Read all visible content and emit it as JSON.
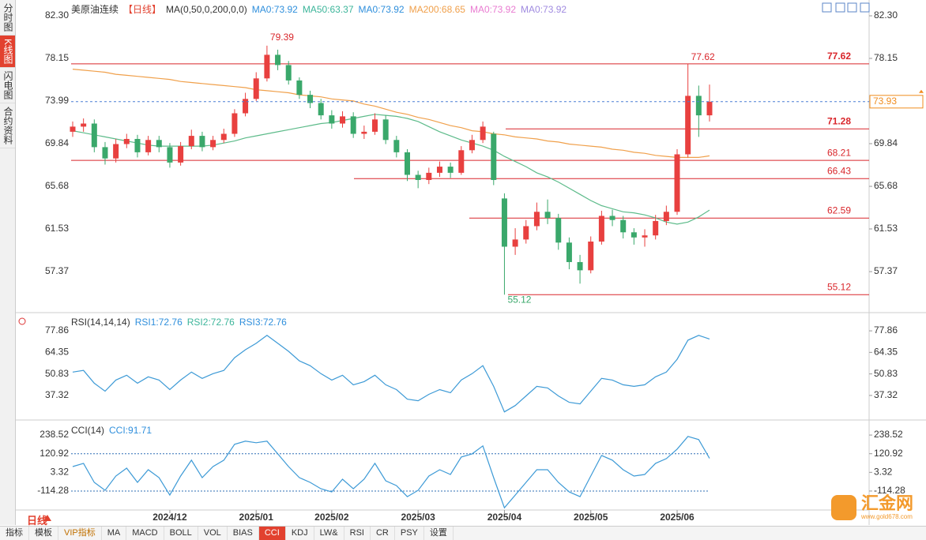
{
  "sidebar": {
    "tabs": [
      "分时图",
      "K线图",
      "闪电图",
      "合约资料"
    ],
    "active": "K线图"
  },
  "chart_data": [
    {
      "type": "candlestick",
      "title": "美原油连续",
      "period": "【日线】",
      "indicator": "MA(0,50,0,200,0,0)",
      "legend": [
        {
          "label": "MA0:73.92",
          "color": "#2f8fdc"
        },
        {
          "label": "MA50:63.37",
          "color": "#3cb59a"
        },
        {
          "label": "MA0:73.92",
          "color": "#2f8fdc"
        },
        {
          "label": "MA200:68.65",
          "color": "#f0a04b"
        },
        {
          "label": "MA0:73.92",
          "color": "#e97bd1"
        },
        {
          "label": "MA0:73.92",
          "color": "#a08be0"
        }
      ],
      "categories": [
        null,
        null,
        null,
        null,
        null,
        null,
        null,
        null,
        null,
        "2024/12",
        null,
        null,
        null,
        null,
        null,
        null,
        null,
        "2025/01",
        null,
        null,
        null,
        null,
        null,
        null,
        "2025/02",
        null,
        null,
        null,
        null,
        null,
        null,
        null,
        "2025/03",
        null,
        null,
        null,
        null,
        null,
        null,
        null,
        "2025/04",
        null,
        null,
        null,
        null,
        null,
        null,
        null,
        "2025/05",
        null,
        null,
        null,
        null,
        null,
        null,
        null,
        "2025/06",
        null,
        null,
        null
      ],
      "open": [
        71.0,
        71.5,
        71.8,
        69.5,
        68.4,
        69.8,
        70.3,
        69.0,
        70.2,
        69.5,
        68.0,
        69.6,
        70.6,
        69.5,
        70.2,
        70.8,
        72.8,
        74.2,
        76.2,
        78.5,
        77.5,
        76.0,
        74.6,
        73.8,
        72.6,
        71.8,
        72.5,
        70.8,
        71.0,
        72.2,
        70.2,
        69.0,
        66.8,
        66.3,
        67.0,
        67.6,
        67.0,
        69.2,
        70.2,
        70.8,
        64.5,
        59.8,
        60.5,
        61.8,
        63.2,
        62.6,
        60.2,
        58.3,
        57.5,
        60.3,
        62.8,
        62.4,
        61.2,
        60.7,
        60.9,
        62.3,
        63.2,
        68.8,
        74.5,
        72.6
      ],
      "high": [
        72.0,
        72.3,
        72.2,
        70.0,
        70.3,
        70.8,
        70.7,
        70.6,
        70.6,
        69.9,
        70.0,
        71.2,
        71.0,
        70.6,
        71.3,
        73.2,
        74.8,
        76.8,
        79.39,
        79.0,
        77.9,
        76.3,
        75.0,
        74.2,
        73.1,
        73.0,
        72.9,
        71.6,
        72.8,
        72.6,
        70.6,
        69.3,
        67.2,
        67.5,
        68.1,
        68.0,
        69.6,
        70.7,
        72.0,
        71.0,
        65.0,
        61.6,
        62.4,
        64.1,
        64.4,
        63.0,
        60.7,
        59.0,
        60.8,
        63.3,
        63.4,
        62.8,
        61.6,
        61.5,
        62.9,
        63.8,
        69.3,
        77.62,
        75.5,
        75.6
      ],
      "low": [
        70.5,
        71.0,
        69.0,
        67.8,
        68.0,
        69.4,
        68.5,
        68.7,
        69.0,
        67.5,
        67.7,
        69.3,
        69.1,
        69.2,
        69.9,
        70.5,
        72.5,
        74.0,
        75.9,
        77.0,
        75.6,
        74.2,
        73.3,
        72.2,
        71.3,
        71.4,
        70.4,
        70.3,
        70.7,
        69.8,
        68.5,
        66.2,
        65.5,
        65.9,
        66.6,
        66.5,
        66.8,
        68.9,
        69.9,
        65.8,
        55.12,
        59.0,
        60.1,
        61.4,
        62.0,
        59.5,
        57.6,
        56.2,
        57.2,
        60.0,
        61.8,
        60.6,
        60.0,
        59.8,
        60.5,
        61.9,
        62.9,
        68.5,
        70.5,
        72.0
      ],
      "close": [
        71.5,
        71.8,
        69.5,
        68.4,
        69.8,
        70.3,
        69.0,
        70.2,
        69.5,
        68.0,
        69.6,
        70.6,
        69.5,
        70.2,
        70.8,
        72.8,
        74.2,
        76.2,
        78.5,
        77.5,
        76.0,
        74.6,
        73.8,
        72.6,
        71.8,
        72.5,
        70.8,
        71.0,
        72.2,
        70.2,
        69.0,
        66.8,
        66.3,
        67.0,
        67.6,
        67.0,
        69.2,
        70.2,
        71.5,
        66.3,
        59.8,
        60.5,
        61.8,
        63.2,
        62.6,
        60.2,
        58.3,
        57.5,
        60.3,
        62.8,
        62.4,
        61.2,
        60.7,
        60.9,
        62.3,
        63.2,
        68.8,
        74.5,
        72.6,
        73.93
      ],
      "up_color": "#e8403f",
      "down_color": "#3aa86b",
      "series": [
        {
          "color": "#5dbb8a",
          "values": [
            71.1,
            70.9,
            70.7,
            70.5,
            70.3,
            70.1,
            69.9,
            69.7,
            69.6,
            69.6,
            69.6,
            69.6,
            69.6,
            69.7,
            69.9,
            70.1,
            70.4,
            70.6,
            70.8,
            71.0,
            71.2,
            71.4,
            71.6,
            71.8,
            71.9,
            72.1,
            72.3,
            72.5,
            72.7,
            72.6,
            72.5,
            72.3,
            72.0,
            71.5,
            71.0,
            70.6,
            70.2,
            69.9,
            69.6,
            69.2,
            68.6,
            68.1,
            67.6,
            67.0,
            66.6,
            66.1,
            65.5,
            64.9,
            64.3,
            63.8,
            63.5,
            63.2,
            63.1,
            62.9,
            62.6,
            62.2,
            62.0,
            62.2,
            62.7,
            63.37
          ]
        },
        {
          "color": "#f0a04b",
          "values": [
            77.1,
            77.0,
            76.9,
            76.8,
            76.6,
            76.5,
            76.4,
            76.3,
            76.2,
            76.1,
            75.9,
            75.8,
            75.7,
            75.6,
            75.5,
            75.4,
            75.3,
            75.1,
            75.0,
            74.9,
            74.8,
            74.6,
            74.5,
            74.4,
            74.2,
            74.1,
            74.0,
            73.7,
            73.5,
            73.2,
            72.9,
            72.7,
            72.4,
            72.2,
            71.9,
            71.6,
            71.4,
            71.1,
            71.0,
            70.8,
            70.7,
            70.5,
            70.4,
            70.3,
            70.1,
            70.0,
            69.8,
            69.7,
            69.6,
            69.5,
            69.3,
            69.2,
            69.0,
            68.9,
            68.7,
            68.6,
            68.5,
            68.5,
            68.5,
            68.65
          ]
        }
      ],
      "ylim": [
        53.45,
        83.84
      ],
      "yticks": [
        {
          "value": 82.3,
          "label": "82.30"
        },
        78.15,
        73.99,
        69.84,
        65.68,
        61.53,
        57.37
      ],
      "hlines": [
        77.62,
        71.28,
        68.21,
        66.43,
        62.59,
        55.12
      ],
      "hline_color": "#d9262b",
      "last_color": "#f08c1e"
    },
    {
      "type": "line",
      "title": "RSI(14,14,14)",
      "legend": [
        {
          "label": "RSI1:72.76",
          "color": "#2f8fdc"
        },
        {
          "label": "RSI2:72.76",
          "color": "#3cb59a"
        },
        {
          "label": "RSI3:72.76",
          "color": "#2f8fdc"
        }
      ],
      "series": [
        {
          "color": "#3d9ad6",
          "values": [
            52,
            53,
            45,
            40,
            47,
            50,
            45,
            49,
            47,
            41,
            47,
            52,
            48,
            51,
            53,
            61,
            66,
            70,
            75,
            70,
            65,
            59,
            56,
            51,
            47,
            50,
            44,
            46,
            50,
            44,
            41,
            35,
            34,
            38,
            41,
            39,
            47,
            51,
            56,
            43,
            27,
            31,
            37,
            43,
            42,
            37,
            33,
            32,
            40,
            48,
            47,
            44,
            43,
            44,
            49,
            52,
            60,
            72,
            75,
            72.76
          ]
        }
      ],
      "ylim": [
        22.9,
        88.3
      ],
      "yticks": [
        77.86,
        64.35,
        50.83,
        37.32
      ]
    },
    {
      "type": "line",
      "title": "CCI(14)",
      "legend": [
        {
          "label": "CCI:91.71",
          "color": "#2f8fdc"
        }
      ],
      "series": [
        {
          "color": "#3d9ad6",
          "values": [
            40,
            60,
            -60,
            -110,
            -20,
            30,
            -60,
            20,
            -30,
            -140,
            -20,
            80,
            -30,
            40,
            80,
            180,
            200,
            190,
            200,
            120,
            40,
            -30,
            -60,
            -100,
            -120,
            -40,
            -100,
            -40,
            60,
            -50,
            -80,
            -150,
            -110,
            -20,
            20,
            -10,
            100,
            120,
            170,
            -30,
            -220,
            -140,
            -60,
            20,
            20,
            -60,
            -120,
            -150,
            -20,
            110,
            80,
            20,
            -20,
            -10,
            60,
            90,
            150,
            230,
            210,
            91.71
          ]
        }
      ],
      "ylim": [
        -229,
        318.5
      ],
      "yticks": [
        238.52,
        120.92,
        3.32,
        -114.28
      ],
      "reference_lines": [
        120.92,
        -114.28
      ]
    }
  ],
  "period_button": "日线",
  "toolbar": [
    "指标",
    "模板",
    "VIP指标",
    "MA",
    "MACD",
    "BOLL",
    "VOL",
    "BIAS",
    "CCI",
    "KDJ",
    "LW&",
    "RSI",
    "CR",
    "PSY",
    "设置"
  ],
  "active_tool": "CCI",
  "watermark": {
    "name": "汇金网",
    "url": "www.gold678.com"
  }
}
